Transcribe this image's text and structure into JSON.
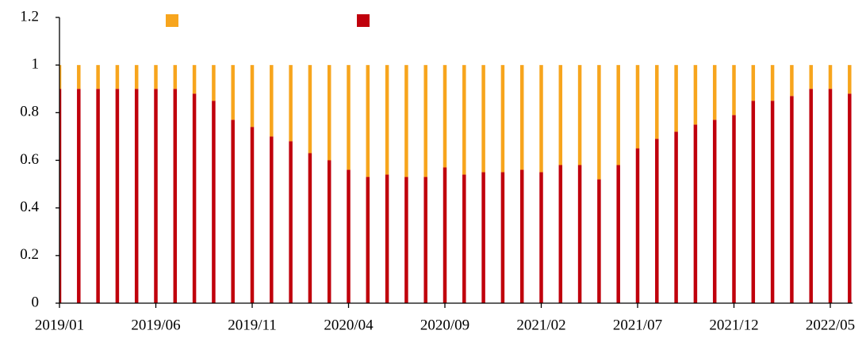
{
  "chart_data": {
    "type": "stacked_bar",
    "categories": [
      "2019/01",
      null,
      null,
      null,
      null,
      "2019/06",
      null,
      null,
      null,
      null,
      "2019/11",
      null,
      null,
      null,
      null,
      "2020/04",
      null,
      null,
      null,
      null,
      "2020/09",
      null,
      null,
      null,
      null,
      "2021/02",
      null,
      null,
      null,
      null,
      "2021/07",
      null,
      null,
      null,
      null,
      "2021/12",
      null,
      null,
      null,
      null,
      "2022/05",
      null
    ],
    "series": [
      {
        "color": "#c0000c",
        "values": [
          0.9,
          0.9,
          0.9,
          0.9,
          0.9,
          0.9,
          0.9,
          0.88,
          0.85,
          0.77,
          0.74,
          0.7,
          0.68,
          0.63,
          0.6,
          0.56,
          0.53,
          0.54,
          0.53,
          0.53,
          0.57,
          0.54,
          0.55,
          0.55,
          0.56,
          0.55,
          0.58,
          0.58,
          0.52,
          0.58,
          0.65,
          0.69,
          0.72,
          0.75,
          0.77,
          0.79,
          0.85,
          0.85,
          0.87,
          0.9,
          0.9,
          0.88
        ]
      },
      {
        "color": "#f7a51d",
        "values": [
          0.1,
          0.1,
          0.1,
          0.1,
          0.1,
          0.1,
          0.1,
          0.12,
          0.15,
          0.23,
          0.26,
          0.3,
          0.32,
          0.37,
          0.4,
          0.44,
          0.47,
          0.46,
          0.47,
          0.47,
          0.43,
          0.46,
          0.45,
          0.45,
          0.44,
          0.45,
          0.42,
          0.42,
          0.48,
          0.42,
          0.35,
          0.31,
          0.28,
          0.25,
          0.23,
          0.21,
          0.15,
          0.15,
          0.13,
          0.1,
          0.1,
          0.12
        ]
      }
    ],
    "legend_order": [
      1,
      0
    ],
    "ylim": [
      0,
      1.2
    ],
    "yticks": [
      0,
      0.2,
      0.4,
      0.6,
      0.8,
      1,
      1.2
    ],
    "grid": false
  }
}
